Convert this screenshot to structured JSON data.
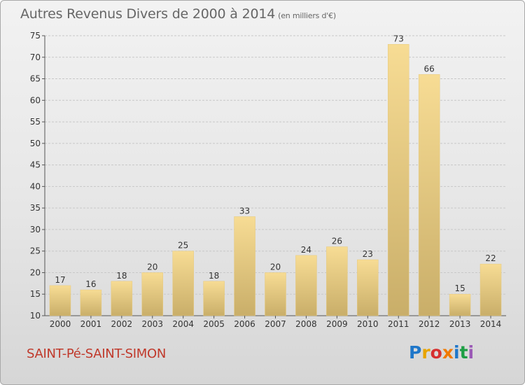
{
  "header": {
    "title": "Autres Revenus Divers de 2000 à 2014",
    "unit": "(en milliers d'€)"
  },
  "footer": {
    "place": "SAINT-Pé-SAINT-SIMON",
    "logo_text": "Proxiti",
    "logo_colors": [
      "#1f77c9",
      "#e8a400",
      "#d62f2f",
      "#f07a00",
      "#1f77c9",
      "#1e9e45",
      "#9b59b6"
    ]
  },
  "colors": {
    "bar_light": "#f7dc94",
    "bar_dark": "#c9ae69",
    "grid": "#c8c8c8",
    "axis_text": "#333333"
  },
  "chart_data": {
    "type": "bar",
    "categories": [
      "2000",
      "2001",
      "2002",
      "2003",
      "2004",
      "2005",
      "2006",
      "2007",
      "2008",
      "2009",
      "2010",
      "2011",
      "2012",
      "2013",
      "2014"
    ],
    "values": [
      17,
      16,
      18,
      20,
      25,
      18,
      33,
      20,
      24,
      26,
      23,
      73,
      66,
      15,
      22
    ],
    "ylim": [
      10,
      75
    ],
    "yticks": [
      10,
      15,
      20,
      25,
      30,
      35,
      40,
      45,
      50,
      55,
      60,
      65,
      70,
      75
    ],
    "grid": true,
    "data_labels": true
  }
}
